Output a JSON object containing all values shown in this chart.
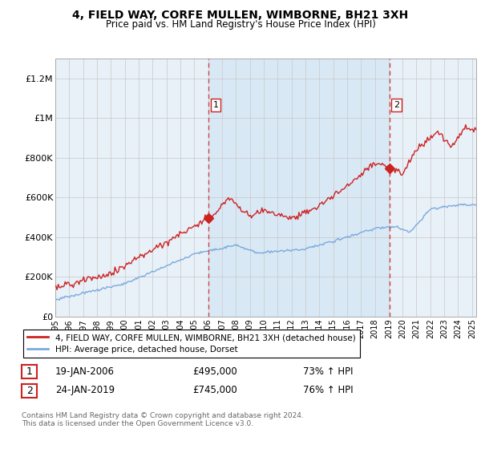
{
  "title": "4, FIELD WAY, CORFE MULLEN, WIMBORNE, BH21 3XH",
  "subtitle": "Price paid vs. HM Land Registry's House Price Index (HPI)",
  "hpi_label": "HPI: Average price, detached house, Dorset",
  "property_label": "4, FIELD WAY, CORFE MULLEN, WIMBORNE, BH21 3XH (detached house)",
  "footnote": "Contains HM Land Registry data © Crown copyright and database right 2024.\nThis data is licensed under the Open Government Licence v3.0.",
  "sale1": {
    "label": "1",
    "date": "19-JAN-2006",
    "price": "£495,000",
    "hpi": "73% ↑ HPI"
  },
  "sale2": {
    "label": "2",
    "date": "24-JAN-2019",
    "price": "£745,000",
    "hpi": "76% ↑ HPI"
  },
  "vline1_x": 2006.05,
  "vline2_x": 2019.05,
  "dot1_x": 2006.05,
  "dot1_y": 495000,
  "dot2_x": 2019.05,
  "dot2_y": 745000,
  "ylim": [
    0,
    1300000
  ],
  "xlim": [
    1995.0,
    2025.3
  ],
  "hpi_color": "#7aaadd",
  "property_color": "#cc2222",
  "bg_color": "#e8f0f8",
  "bg_color_mid": "#d0e4f4",
  "grid_color": "#c8c8c8",
  "vline_color": "#cc4444",
  "yticks": [
    0,
    200000,
    400000,
    600000,
    800000,
    1000000,
    1200000
  ],
  "ytick_labels": [
    "£0",
    "£200K",
    "£400K",
    "£600K",
    "£800K",
    "£1M",
    "£1.2M"
  ],
  "xtick_years": [
    1995,
    1996,
    1997,
    1998,
    1999,
    2000,
    2001,
    2002,
    2003,
    2004,
    2005,
    2006,
    2007,
    2008,
    2009,
    2010,
    2011,
    2012,
    2013,
    2014,
    2015,
    2016,
    2017,
    2018,
    2019,
    2020,
    2021,
    2022,
    2023,
    2024,
    2025
  ]
}
